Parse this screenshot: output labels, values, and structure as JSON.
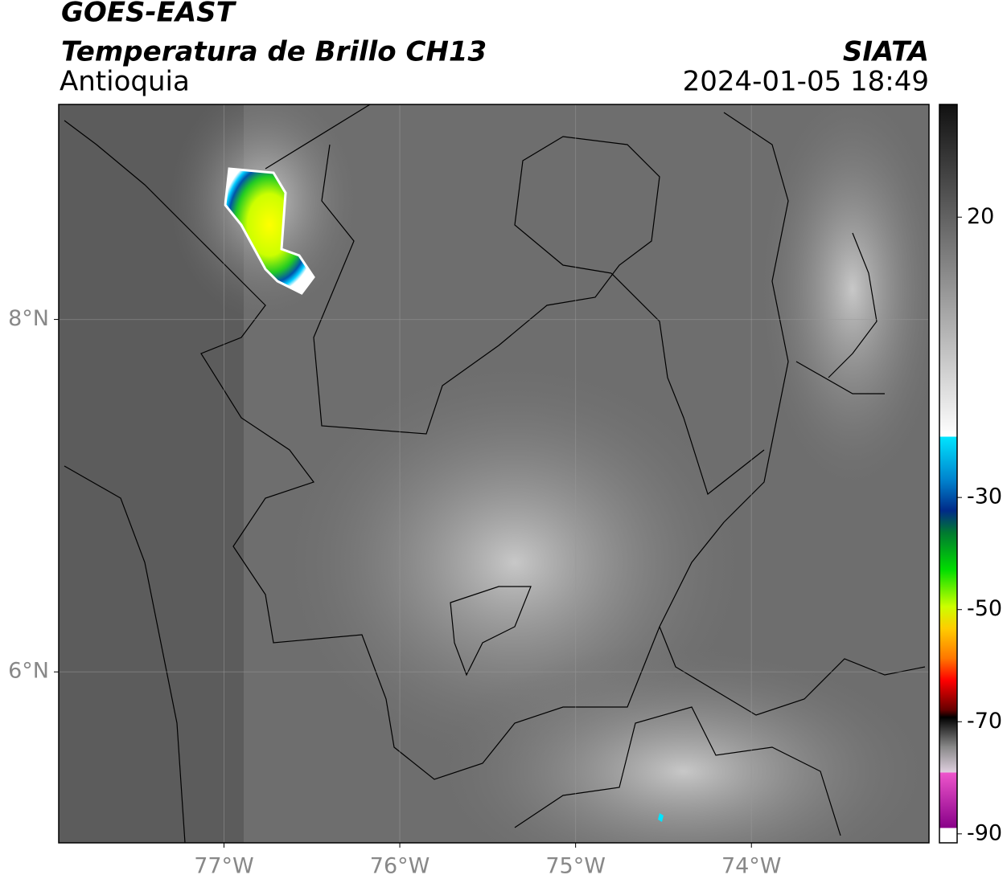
{
  "header": {
    "title": "GOES-EAST",
    "subtitle": "Temperatura de Brillo CH13",
    "region": "Antioquia",
    "source": "SIATA",
    "timestamp": "2024-01-05 18:49"
  },
  "map": {
    "xlim": [
      -77.94,
      -72.99
    ],
    "ylim": [
      5.03,
      9.22
    ],
    "xticks": [
      {
        "value": -77,
        "label": "77°W"
      },
      {
        "value": -76,
        "label": "76°W"
      },
      {
        "value": -75,
        "label": "75°W"
      },
      {
        "value": -74,
        "label": "74°W"
      }
    ],
    "yticks": [
      {
        "value": 8,
        "label": "8°N"
      },
      {
        "value": 6,
        "label": "6°N"
      }
    ],
    "grid": true
  },
  "colorbar": {
    "lim": [
      -91.6,
      40.1
    ],
    "ticks": [
      20,
      -30,
      -50,
      -70,
      -90
    ]
  }
}
